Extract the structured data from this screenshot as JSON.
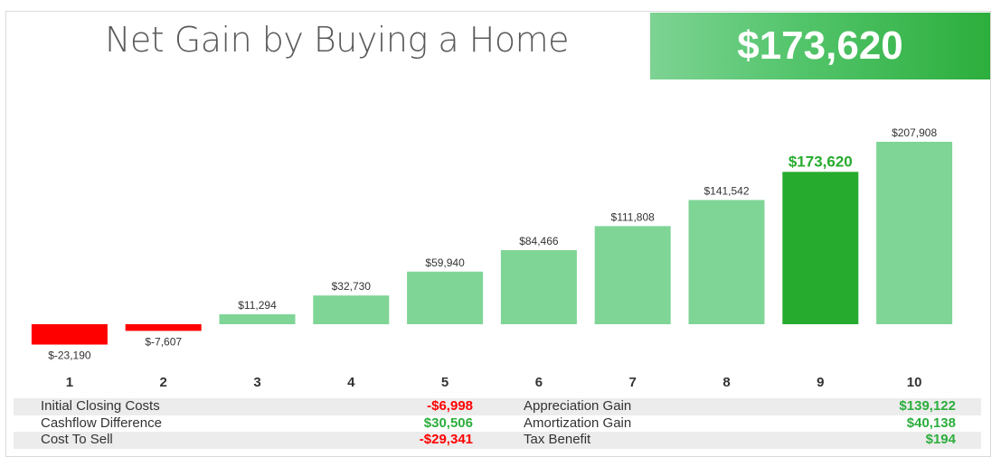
{
  "title": "Net Gain by Buying a Home",
  "hero_value": "$173,620",
  "colors": {
    "negative": "#ff0000",
    "positive_light": "#7fd596",
    "positive_highlight": "#26ab2e",
    "title": "#595959",
    "label": "#333333"
  },
  "chart_data": {
    "type": "bar",
    "categories": [
      "1",
      "2",
      "3",
      "4",
      "5",
      "6",
      "7",
      "8",
      "9",
      "10"
    ],
    "values": [
      -23190,
      -7607,
      11294,
      32730,
      59940,
      84466,
      111808,
      141542,
      173620,
      207908
    ],
    "data_labels": [
      "$-23,190",
      "$-7,607",
      "$11,294",
      "$32,730",
      "$59,940",
      "$84,466",
      "$111,808",
      "$141,542",
      "$173,620",
      "$207,908"
    ],
    "highlight_index": 8,
    "ylim": [
      -23190,
      207908
    ],
    "grid": false,
    "legend": "none"
  },
  "summary": {
    "rows": [
      {
        "left_label": "Initial Closing Costs",
        "left_value": "-$6,998",
        "left_sign": "neg",
        "right_label": "Appreciation Gain",
        "right_value": "$139,122",
        "right_sign": "pos"
      },
      {
        "left_label": "Cashflow Difference",
        "left_value": "$30,506",
        "left_sign": "pos",
        "right_label": "Amortization Gain",
        "right_value": "$40,138",
        "right_sign": "pos"
      },
      {
        "left_label": "Cost To Sell",
        "left_value": "-$29,341",
        "left_sign": "neg",
        "right_label": "Tax Benefit",
        "right_value": "$194",
        "right_sign": "pos"
      }
    ]
  }
}
